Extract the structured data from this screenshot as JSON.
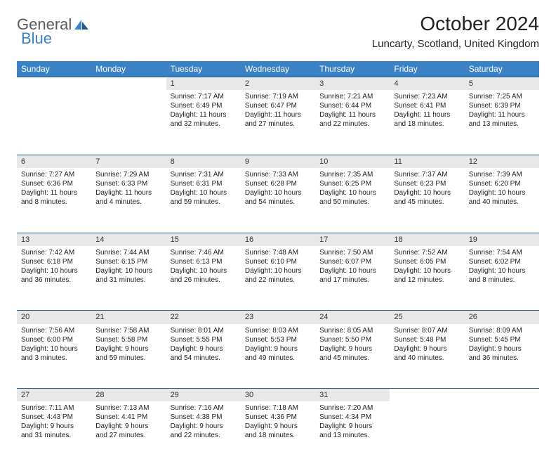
{
  "brand": {
    "general": "General",
    "blue": "Blue"
  },
  "title": "October 2024",
  "location": "Luncarty, Scotland, United Kingdom",
  "colors": {
    "header_bg": "#3b82c4",
    "header_text": "#ffffff",
    "daynum_bg": "#e8e8e8",
    "row_sep": "#1a5a8a",
    "text": "#222222",
    "logo_general": "#5a5a5a",
    "logo_blue": "#3b82c4",
    "page_bg": "#ffffff"
  },
  "weekdays": [
    "Sunday",
    "Monday",
    "Tuesday",
    "Wednesday",
    "Thursday",
    "Friday",
    "Saturday"
  ],
  "weeks": [
    [
      null,
      null,
      {
        "day": 1,
        "sunrise": "Sunrise: 7:17 AM",
        "sunset": "Sunset: 6:49 PM",
        "daylight": "Daylight: 11 hours and 32 minutes."
      },
      {
        "day": 2,
        "sunrise": "Sunrise: 7:19 AM",
        "sunset": "Sunset: 6:47 PM",
        "daylight": "Daylight: 11 hours and 27 minutes."
      },
      {
        "day": 3,
        "sunrise": "Sunrise: 7:21 AM",
        "sunset": "Sunset: 6:44 PM",
        "daylight": "Daylight: 11 hours and 22 minutes."
      },
      {
        "day": 4,
        "sunrise": "Sunrise: 7:23 AM",
        "sunset": "Sunset: 6:41 PM",
        "daylight": "Daylight: 11 hours and 18 minutes."
      },
      {
        "day": 5,
        "sunrise": "Sunrise: 7:25 AM",
        "sunset": "Sunset: 6:39 PM",
        "daylight": "Daylight: 11 hours and 13 minutes."
      }
    ],
    [
      {
        "day": 6,
        "sunrise": "Sunrise: 7:27 AM",
        "sunset": "Sunset: 6:36 PM",
        "daylight": "Daylight: 11 hours and 8 minutes."
      },
      {
        "day": 7,
        "sunrise": "Sunrise: 7:29 AM",
        "sunset": "Sunset: 6:33 PM",
        "daylight": "Daylight: 11 hours and 4 minutes."
      },
      {
        "day": 8,
        "sunrise": "Sunrise: 7:31 AM",
        "sunset": "Sunset: 6:31 PM",
        "daylight": "Daylight: 10 hours and 59 minutes."
      },
      {
        "day": 9,
        "sunrise": "Sunrise: 7:33 AM",
        "sunset": "Sunset: 6:28 PM",
        "daylight": "Daylight: 10 hours and 54 minutes."
      },
      {
        "day": 10,
        "sunrise": "Sunrise: 7:35 AM",
        "sunset": "Sunset: 6:25 PM",
        "daylight": "Daylight: 10 hours and 50 minutes."
      },
      {
        "day": 11,
        "sunrise": "Sunrise: 7:37 AM",
        "sunset": "Sunset: 6:23 PM",
        "daylight": "Daylight: 10 hours and 45 minutes."
      },
      {
        "day": 12,
        "sunrise": "Sunrise: 7:39 AM",
        "sunset": "Sunset: 6:20 PM",
        "daylight": "Daylight: 10 hours and 40 minutes."
      }
    ],
    [
      {
        "day": 13,
        "sunrise": "Sunrise: 7:42 AM",
        "sunset": "Sunset: 6:18 PM",
        "daylight": "Daylight: 10 hours and 36 minutes."
      },
      {
        "day": 14,
        "sunrise": "Sunrise: 7:44 AM",
        "sunset": "Sunset: 6:15 PM",
        "daylight": "Daylight: 10 hours and 31 minutes."
      },
      {
        "day": 15,
        "sunrise": "Sunrise: 7:46 AM",
        "sunset": "Sunset: 6:13 PM",
        "daylight": "Daylight: 10 hours and 26 minutes."
      },
      {
        "day": 16,
        "sunrise": "Sunrise: 7:48 AM",
        "sunset": "Sunset: 6:10 PM",
        "daylight": "Daylight: 10 hours and 22 minutes."
      },
      {
        "day": 17,
        "sunrise": "Sunrise: 7:50 AM",
        "sunset": "Sunset: 6:07 PM",
        "daylight": "Daylight: 10 hours and 17 minutes."
      },
      {
        "day": 18,
        "sunrise": "Sunrise: 7:52 AM",
        "sunset": "Sunset: 6:05 PM",
        "daylight": "Daylight: 10 hours and 12 minutes."
      },
      {
        "day": 19,
        "sunrise": "Sunrise: 7:54 AM",
        "sunset": "Sunset: 6:02 PM",
        "daylight": "Daylight: 10 hours and 8 minutes."
      }
    ],
    [
      {
        "day": 20,
        "sunrise": "Sunrise: 7:56 AM",
        "sunset": "Sunset: 6:00 PM",
        "daylight": "Daylight: 10 hours and 3 minutes."
      },
      {
        "day": 21,
        "sunrise": "Sunrise: 7:58 AM",
        "sunset": "Sunset: 5:58 PM",
        "daylight": "Daylight: 9 hours and 59 minutes."
      },
      {
        "day": 22,
        "sunrise": "Sunrise: 8:01 AM",
        "sunset": "Sunset: 5:55 PM",
        "daylight": "Daylight: 9 hours and 54 minutes."
      },
      {
        "day": 23,
        "sunrise": "Sunrise: 8:03 AM",
        "sunset": "Sunset: 5:53 PM",
        "daylight": "Daylight: 9 hours and 49 minutes."
      },
      {
        "day": 24,
        "sunrise": "Sunrise: 8:05 AM",
        "sunset": "Sunset: 5:50 PM",
        "daylight": "Daylight: 9 hours and 45 minutes."
      },
      {
        "day": 25,
        "sunrise": "Sunrise: 8:07 AM",
        "sunset": "Sunset: 5:48 PM",
        "daylight": "Daylight: 9 hours and 40 minutes."
      },
      {
        "day": 26,
        "sunrise": "Sunrise: 8:09 AM",
        "sunset": "Sunset: 5:45 PM",
        "daylight": "Daylight: 9 hours and 36 minutes."
      }
    ],
    [
      {
        "day": 27,
        "sunrise": "Sunrise: 7:11 AM",
        "sunset": "Sunset: 4:43 PM",
        "daylight": "Daylight: 9 hours and 31 minutes."
      },
      {
        "day": 28,
        "sunrise": "Sunrise: 7:13 AM",
        "sunset": "Sunset: 4:41 PM",
        "daylight": "Daylight: 9 hours and 27 minutes."
      },
      {
        "day": 29,
        "sunrise": "Sunrise: 7:16 AM",
        "sunset": "Sunset: 4:38 PM",
        "daylight": "Daylight: 9 hours and 22 minutes."
      },
      {
        "day": 30,
        "sunrise": "Sunrise: 7:18 AM",
        "sunset": "Sunset: 4:36 PM",
        "daylight": "Daylight: 9 hours and 18 minutes."
      },
      {
        "day": 31,
        "sunrise": "Sunrise: 7:20 AM",
        "sunset": "Sunset: 4:34 PM",
        "daylight": "Daylight: 9 hours and 13 minutes."
      },
      null,
      null
    ]
  ]
}
